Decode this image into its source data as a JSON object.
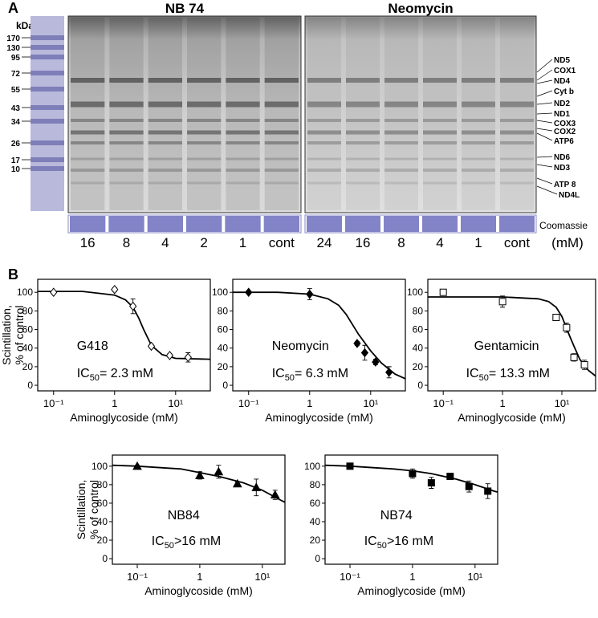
{
  "panel_a": {
    "label": "A",
    "marker_unit": "kDa",
    "markers": [
      170,
      130,
      95,
      72,
      55,
      43,
      34,
      26,
      17,
      10
    ],
    "groups": [
      {
        "title": "NB 74",
        "lanes": [
          "16",
          "8",
          "4",
          "2",
          "1",
          "cont"
        ]
      },
      {
        "title": "Neomycin",
        "lanes": [
          "24",
          "16",
          "8",
          "4",
          "1",
          "cont"
        ]
      }
    ],
    "unit": "(mM)",
    "loading_label": "Coomassie",
    "bands": [
      "ND5",
      "COX1",
      "ND4",
      "Cyt b",
      "ND2",
      "ND1",
      "COX3",
      "COX2",
      "ATP6",
      "ND6",
      "ND3",
      "ATP 8",
      "ND4L"
    ]
  },
  "panel_b": {
    "label": "B"
  },
  "chart_data": [
    {
      "type": "scatter",
      "xscale": "log",
      "label": "G418",
      "annotation": {
        "text": "IC",
        "sub": "50",
        "rest": "= 2.3 mM"
      },
      "xlabel": "Aminoglycoside (mM)",
      "ylabel": [
        "Scintillation,",
        "% of control"
      ],
      "marker": "diamond-open",
      "x": [
        0.1,
        1,
        2,
        4,
        8,
        16
      ],
      "values": [
        100,
        103,
        85,
        42,
        32,
        30
      ],
      "errors": [
        1,
        2,
        8,
        2,
        2,
        5
      ],
      "fit_x": [
        0.055,
        0.3,
        1,
        1.5,
        2,
        2.5,
        3,
        4,
        6,
        10,
        37
      ],
      "fit_values": [
        101,
        101,
        97,
        92,
        84,
        72,
        60,
        43,
        33,
        29,
        28
      ],
      "xlim": [
        0.055,
        37
      ],
      "ylim": [
        -6,
        114
      ],
      "xticks": [
        {
          "value": 0.1,
          "label": "10⁻¹"
        },
        1,
        {
          "value": 10,
          "label": "10¹"
        }
      ],
      "yticks": [
        0,
        20,
        40,
        60,
        80,
        100
      ]
    },
    {
      "type": "scatter",
      "xscale": "log",
      "label": "Neomycin",
      "annotation": {
        "text": "IC",
        "sub": "50",
        "rest": "= 6.3 mM"
      },
      "xlabel": "Aminoglycoside (mM)",
      "marker": "diamond-filled",
      "x": [
        0.1,
        1,
        6,
        8,
        12,
        20
      ],
      "values": [
        100,
        98,
        45,
        35,
        25,
        14
      ],
      "errors": [
        1,
        6,
        2,
        8,
        3,
        6
      ],
      "fit_x": [
        0.055,
        0.3,
        1,
        2,
        3,
        4,
        6.3,
        10,
        15,
        25,
        37
      ],
      "fit_values": [
        100,
        100,
        98,
        93,
        86,
        76,
        55,
        37,
        24,
        12,
        7
      ],
      "xlim": [
        0.055,
        37
      ],
      "ylim": [
        -6,
        114
      ],
      "xticks": [
        {
          "value": 0.1,
          "label": "10⁻¹"
        },
        1,
        {
          "value": 10,
          "label": "10¹"
        }
      ],
      "yticks": [
        0,
        20,
        40,
        60,
        80,
        100
      ]
    },
    {
      "type": "scatter",
      "xscale": "log",
      "label": "Gentamicin",
      "annotation": {
        "text": "IC",
        "sub": "50",
        "rest": "= 13.3 mM"
      },
      "xlabel": "Aminoglycoside (mM)",
      "marker": "square-open",
      "x": [
        0.1,
        1,
        8,
        12,
        16,
        24
      ],
      "values": [
        100,
        90,
        73,
        62,
        30,
        22
      ],
      "errors": [
        2,
        6,
        3,
        5,
        4,
        5
      ],
      "fit_x": [
        0.055,
        1,
        4,
        6,
        8,
        10,
        13.3,
        16,
        20,
        28,
        37
      ],
      "fit_values": [
        95,
        95,
        93,
        90,
        84,
        74,
        54,
        42,
        28,
        16,
        10
      ],
      "xlim": [
        0.055,
        37
      ],
      "ylim": [
        -6,
        114
      ],
      "xticks": [
        {
          "value": 0.1,
          "label": "10⁻¹"
        },
        1,
        {
          "value": 10,
          "label": "10¹"
        }
      ],
      "yticks": [
        0,
        20,
        40,
        60,
        80,
        100
      ]
    },
    {
      "type": "scatter",
      "xscale": "log",
      "label": "NB84",
      "annotation": {
        "text": "IC",
        "sub": "50",
        "rest": ">16 mM"
      },
      "xlabel": "Aminoglycoside (mM)",
      "ylabel": [
        "Scintillation,",
        "% of control"
      ],
      "marker": "triangle-filled",
      "x": [
        0.1,
        1,
        2,
        4,
        8,
        16
      ],
      "values": [
        100,
        90,
        94,
        81,
        77,
        69
      ],
      "errors": [
        1,
        4,
        7,
        2,
        9,
        5
      ],
      "fit_x": [
        0.04,
        0.1,
        0.5,
        1,
        2,
        5,
        10,
        20,
        23
      ],
      "fit_values": [
        101,
        100,
        97,
        93,
        89,
        82,
        74,
        63,
        61
      ],
      "xlim": [
        0.04,
        23
      ],
      "ylim": [
        -6,
        112
      ],
      "xticks": [
        {
          "value": 0.1,
          "label": "10⁻¹"
        },
        1,
        {
          "value": 10,
          "label": "10¹"
        }
      ],
      "yticks": [
        0,
        20,
        40,
        60,
        80,
        100
      ]
    },
    {
      "type": "scatter",
      "xscale": "log",
      "label": "NB74",
      "annotation": {
        "text": "IC",
        "sub": "50",
        "rest": ">16 mM"
      },
      "xlabel": "Aminoglycoside (mM)",
      "marker": "square-filled",
      "x": [
        0.1,
        1,
        2,
        4,
        8,
        16
      ],
      "values": [
        100,
        92,
        82,
        89,
        78,
        73
      ],
      "errors": [
        1,
        5,
        6,
        3,
        6,
        8
      ],
      "fit_x": [
        0.04,
        0.1,
        0.5,
        1,
        2,
        5,
        10,
        20,
        23
      ],
      "fit_values": [
        101,
        100,
        97,
        95,
        92,
        86,
        80,
        73,
        72
      ],
      "xlim": [
        0.04,
        23
      ],
      "ylim": [
        -6,
        112
      ],
      "xticks": [
        {
          "value": 0.1,
          "label": "10⁻¹"
        },
        1,
        {
          "value": 10,
          "label": "10¹"
        }
      ],
      "yticks": [
        0,
        20,
        40,
        60,
        80,
        100
      ]
    }
  ]
}
